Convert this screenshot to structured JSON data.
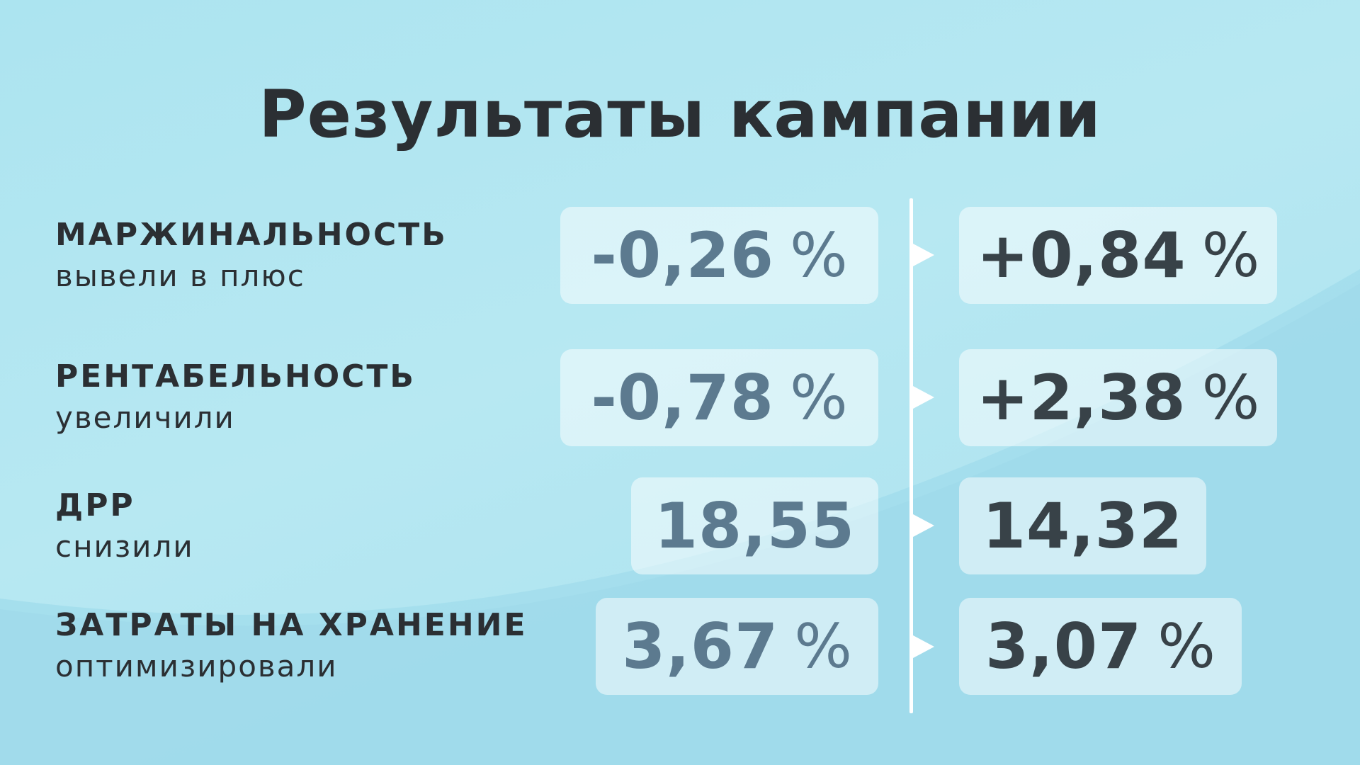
{
  "title": "Результаты кампании",
  "colors": {
    "background": "#ace4f0",
    "before_value": "#5c7a8f",
    "after_value": "#384248",
    "title": "#2b2f33",
    "card": "#ffffff"
  },
  "metrics": [
    {
      "name": "МАРЖИНАЛЬНОСТЬ",
      "caption": "вывели в плюс",
      "before": "-0,26",
      "before_unit": "%",
      "after": "+0,84",
      "after_unit": "%"
    },
    {
      "name": "РЕНТАБЕЛЬНОСТЬ",
      "caption": "увеличили",
      "before": "-0,78",
      "before_unit": "%",
      "after": "+2,38",
      "after_unit": "%"
    },
    {
      "name": "ДРР",
      "caption": "снизили",
      "before": "18,55",
      "before_unit": "",
      "after": "14,32",
      "after_unit": ""
    },
    {
      "name": "ЗАТРАТЫ НА ХРАНЕНИЕ",
      "caption": "оптимизировали",
      "before": "3,67",
      "before_unit": "%",
      "after": "3,07",
      "after_unit": "%"
    }
  ]
}
